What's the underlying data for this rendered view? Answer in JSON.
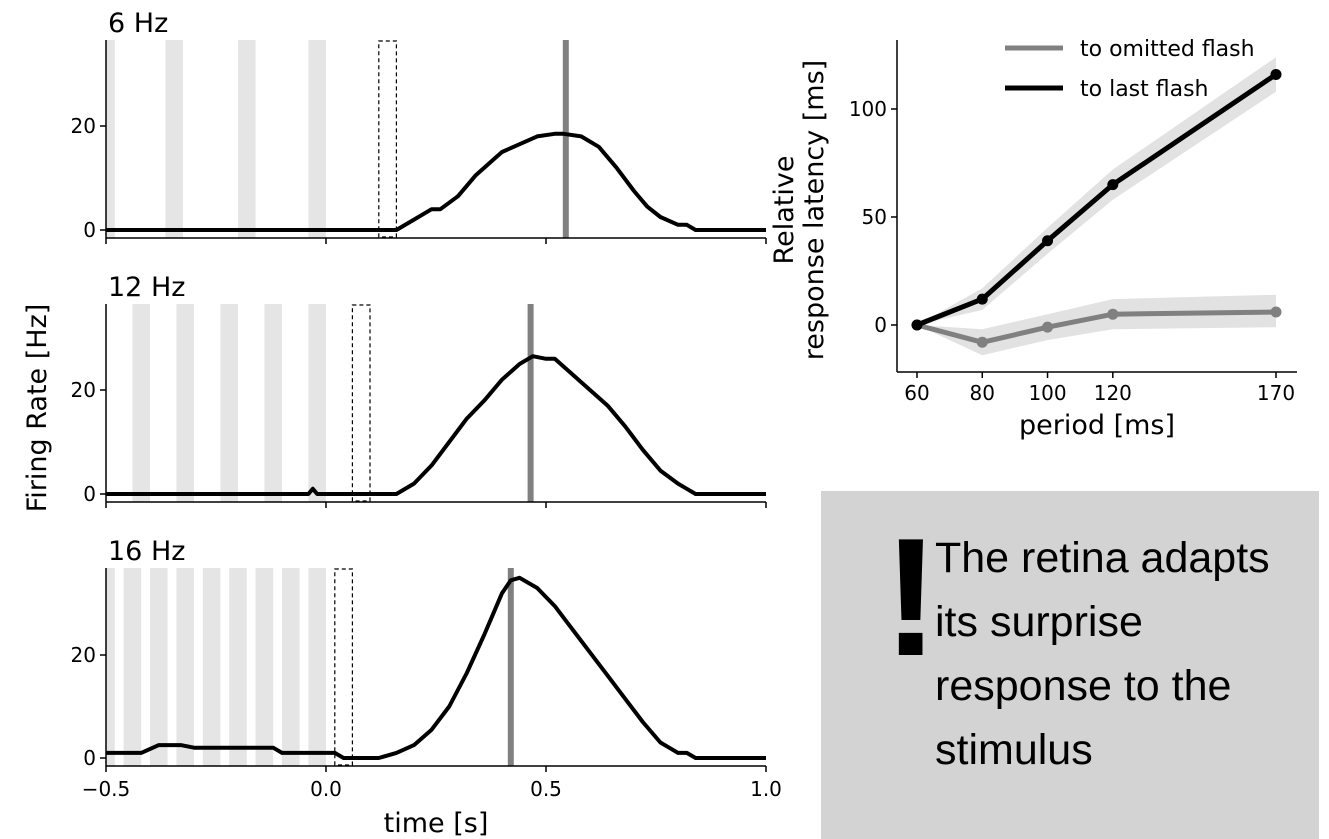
{
  "chart_data": [
    {
      "type": "line",
      "title": "6 Hz",
      "xlim": [
        -0.5,
        1.0
      ],
      "ylim": [
        0,
        36
      ],
      "yticks": [
        0,
        20
      ],
      "x_tick_labels": [],
      "flash_intervals": [
        [
          -0.5,
          -0.48
        ],
        [
          -0.365,
          -0.325
        ],
        [
          -0.2,
          -0.16
        ],
        [
          -0.04,
          0.0
        ]
      ],
      "omitted_flash": [
        0.12,
        0.16
      ],
      "response_peak_marker": 0.545,
      "series": [
        {
          "x": [
            -0.5,
            0.16,
            0.2,
            0.24,
            0.26,
            0.3,
            0.34,
            0.36,
            0.38,
            0.4,
            0.44,
            0.48,
            0.52,
            0.54,
            0.58,
            0.62,
            0.66,
            0.7,
            0.73,
            0.76,
            0.8,
            0.82,
            0.84,
            1.0
          ],
          "y": [
            0,
            0,
            2,
            4,
            4,
            6.5,
            10.5,
            12,
            13.5,
            15,
            16.5,
            18,
            18.5,
            18.5,
            18,
            16,
            12,
            7.5,
            4.5,
            2.5,
            1,
            1,
            0,
            0
          ]
        }
      ]
    },
    {
      "type": "line",
      "title": "12 Hz",
      "xlim": [
        -0.5,
        1.0
      ],
      "ylim": [
        0,
        36
      ],
      "yticks": [
        0,
        20
      ],
      "x_tick_labels": [],
      "flash_intervals": [
        [
          -0.44,
          -0.4
        ],
        [
          -0.34,
          -0.3
        ],
        [
          -0.24,
          -0.2
        ],
        [
          -0.14,
          -0.1
        ],
        [
          -0.04,
          0.0
        ]
      ],
      "omitted_flash": [
        0.06,
        0.1
      ],
      "response_peak_marker": 0.465,
      "series": [
        {
          "x": [
            -0.5,
            -0.04,
            -0.03,
            -0.02,
            0.16,
            0.2,
            0.24,
            0.28,
            0.32,
            0.36,
            0.4,
            0.44,
            0.47,
            0.5,
            0.52,
            0.56,
            0.6,
            0.64,
            0.68,
            0.72,
            0.76,
            0.8,
            0.82,
            0.84,
            1.0
          ],
          "y": [
            0,
            0,
            1,
            0,
            0,
            2,
            5.5,
            10,
            14.5,
            18,
            22,
            25,
            26.5,
            26,
            26,
            23,
            20,
            17,
            13,
            8.5,
            4.5,
            2,
            1,
            0,
            0
          ]
        }
      ]
    },
    {
      "type": "line",
      "title": "16 Hz",
      "xlim": [
        -0.5,
        1.0
      ],
      "ylim": [
        0,
        36
      ],
      "yticks": [
        0,
        20
      ],
      "x_tick_labels": [
        "−0.5",
        "0.0",
        "0.5",
        "1.0"
      ],
      "xlabel": "time [s]",
      "flash_intervals": [
        [
          -0.5,
          -0.48
        ],
        [
          -0.46,
          -0.42
        ],
        [
          -0.4,
          -0.36
        ],
        [
          -0.34,
          -0.3
        ],
        [
          -0.28,
          -0.24
        ],
        [
          -0.22,
          -0.18
        ],
        [
          -0.16,
          -0.12
        ],
        [
          -0.1,
          -0.06
        ],
        [
          -0.04,
          0.0
        ]
      ],
      "omitted_flash": [
        0.02,
        0.06
      ],
      "response_peak_marker": 0.42,
      "series": [
        {
          "x": [
            -0.5,
            -0.42,
            -0.38,
            -0.33,
            -0.3,
            -0.12,
            -0.1,
            0.02,
            0.04,
            0.12,
            0.16,
            0.2,
            0.24,
            0.28,
            0.32,
            0.36,
            0.38,
            0.4,
            0.42,
            0.44,
            0.48,
            0.52,
            0.56,
            0.6,
            0.64,
            0.68,
            0.72,
            0.76,
            0.78,
            0.8,
            0.82,
            0.84,
            1.0
          ],
          "y": [
            1,
            1,
            2.5,
            2.5,
            2,
            2,
            1,
            1,
            0,
            0,
            1,
            2.5,
            5.5,
            10,
            16.5,
            24,
            28,
            32,
            34.5,
            35,
            33,
            29.5,
            25,
            20.5,
            16,
            11.5,
            7,
            3,
            2,
            1,
            1,
            0,
            0
          ]
        }
      ]
    },
    {
      "type": "line",
      "xlim": [
        55,
        173
      ],
      "ylim": [
        -20,
        132
      ],
      "xticks": [
        60,
        80,
        100,
        120,
        170
      ],
      "yticks": [
        0,
        50,
        100
      ],
      "xlabel": "period [ms]",
      "ylabel_lines": [
        "Relative",
        "response latency [ms]"
      ],
      "legend_position": "top-right",
      "x": [
        60,
        80,
        100,
        120,
        170
      ],
      "series": [
        {
          "name": "to omitted flash",
          "color": "#808080",
          "values": [
            0,
            -8,
            -1,
            5,
            6
          ],
          "lower": [
            0,
            -14,
            -7,
            -2,
            -1
          ],
          "upper": [
            0,
            -2,
            5,
            12,
            14
          ]
        },
        {
          "name": "to last flash",
          "color": "#000000",
          "values": [
            0,
            12,
            39,
            65,
            116
          ],
          "lower": [
            0,
            7,
            33,
            58,
            108
          ],
          "upper": [
            0,
            17,
            45,
            72,
            124
          ]
        }
      ]
    }
  ],
  "shared": {
    "ylabel": "Firing Rate [Hz]"
  },
  "callout": {
    "exclamation": "!",
    "text": "The retina adapts its surprise response to the stimulus"
  },
  "colors": {
    "flash": "#e5e5e5",
    "marker": "#808080",
    "trace": "#000000",
    "callout_bg": "#d3d3d3"
  }
}
